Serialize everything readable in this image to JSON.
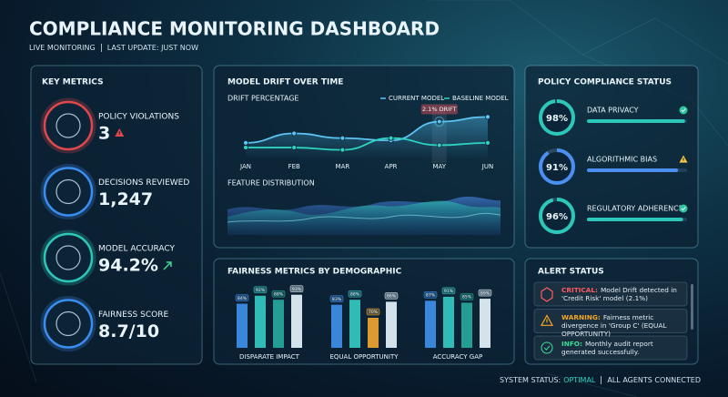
{
  "header": {
    "title": "COMPLIANCE MONITORING DASHBOARD",
    "status": "LIVE MONITORING",
    "last_update": "LAST UPDATE: JUST NOW"
  },
  "key_metrics": {
    "title": "KEY METRICS",
    "items": [
      {
        "label": "POLICY VIOLATIONS",
        "value": "3",
        "color": "#e0474c"
      },
      {
        "label": "DECISIONS REVIEWED",
        "value": "1,247",
        "color": "#3b8df0"
      },
      {
        "label": "MODEL ACCURACY",
        "value": "94.2%",
        "color": "#2cc7b8"
      },
      {
        "label": "FAIRNESS SCORE",
        "value": "8.7/10",
        "color": "#3b8df0"
      }
    ]
  },
  "model_drift": {
    "title": "MODEL DRIFT OVER TIME",
    "chart": {
      "type": "line",
      "title": "DRIFT PERCENTAGE",
      "categories": [
        "JAN",
        "FEB",
        "MAR",
        "APR",
        "MAY",
        "JUN"
      ],
      "series": [
        {
          "name": "CURRENT MODEL",
          "color": "#5cc4f2",
          "values": [
            1.2,
            1.6,
            1.4,
            1.3,
            2.1,
            2.3
          ],
          "value_labels": [
            null,
            null,
            null,
            null,
            "2.1% DRIFT",
            null
          ]
        },
        {
          "name": "BASELINE MODEL",
          "color": "#2dd4bf",
          "values": [
            1.0,
            1.0,
            0.9,
            1.4,
            1.1,
            1.2
          ]
        }
      ],
      "ylim": [
        0.5,
        2.7
      ]
    },
    "feature_distribution": {
      "title": "FEATURE DISTRIBUTION"
    }
  },
  "fairness": {
    "title": "FAIRNESS METRICS BY DEMOGRAPHIC",
    "chart": {
      "type": "bar",
      "categories": [
        "DISPARATE IMPACT",
        "EQUAL OPPORTUNITY",
        "ACCURACY GAP"
      ],
      "series": [
        {
          "colors": [
            "#3f8fe8",
            "#3f8fe8",
            "#3f8fe8"
          ],
          "values": [
            84,
            83,
            87
          ],
          "value_labels": [
            "84%",
            "83%",
            "87%"
          ]
        },
        {
          "colors": [
            "#35c9c2",
            "#35c9c2",
            "#35c9c2"
          ],
          "values": [
            92,
            88,
            91
          ],
          "value_labels": [
            "92%",
            "88%",
            "91%"
          ]
        },
        {
          "colors": [
            "#27a99c",
            "#f0a531",
            "#27a99c"
          ],
          "values": [
            88,
            70,
            85
          ],
          "value_labels": [
            "88%",
            "70%",
            "85%"
          ]
        },
        {
          "colors": [
            "#e6f3fb",
            "#e6f3fb",
            "#e6f3fb"
          ],
          "values": [
            93,
            86,
            89
          ],
          "value_labels": [
            "93%",
            "86%",
            "89%"
          ]
        }
      ],
      "ylim": [
        40,
        100
      ]
    }
  },
  "policy": {
    "title": "POLICY COMPLIANCE STATUS",
    "items": [
      {
        "label": "DATA PRIVACY",
        "value": 98,
        "value_label": "98%",
        "color": "#2cc7b8",
        "status": "ok"
      },
      {
        "label": "ALGORITHMIC BIAS",
        "value": 91,
        "value_label": "91%",
        "color": "#4c8ff0",
        "status": "warning"
      },
      {
        "label": "REGULATORY ADHERENCE",
        "value": 96,
        "value_label": "96%",
        "color": "#2cc7b8",
        "status": "ok"
      }
    ]
  },
  "alerts": {
    "title": "ALERT STATUS",
    "items": [
      {
        "level": "CRITICAL:",
        "message": "Model Drift detected in 'Credit Risk' model (2.1%)",
        "color": "#ff5a5f"
      },
      {
        "level": "WARNING:",
        "message": "Fairness metric divergence in 'Group C' (EQUAL OPPORTUNITY)",
        "color": "#f5a623"
      },
      {
        "level": "INFO:",
        "message": "Monthly audit report generated successfully.",
        "color": "#3ddc97"
      }
    ]
  },
  "footer": {
    "status_label": "SYSTEM STATUS:",
    "status_value": "OPTIMAL",
    "agents": "ALL AGENTS CONNECTED"
  }
}
